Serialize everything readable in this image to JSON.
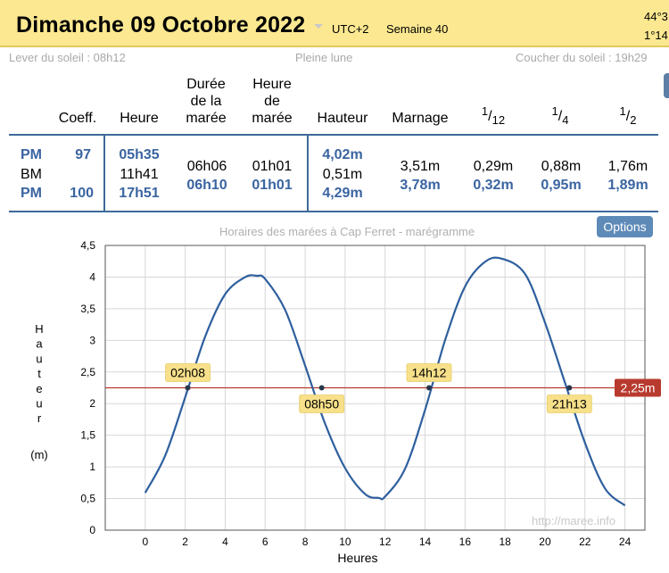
{
  "header": {
    "date": "Dimanche 09 Octobre 2022",
    "timezone": "UTC+2",
    "week": "Semaine 40",
    "coord_lat": "44°3",
    "coord_lon": "1°14"
  },
  "sun": {
    "sunrise": "Lever du soleil : 08h12",
    "moon": "Pleine lune",
    "sunset": "Coucher du soleil : 19h29"
  },
  "table": {
    "headers": {
      "coeff": "Coeff.",
      "heure": "Heure",
      "duree_l1": "Durée",
      "duree_l2": "de la",
      "duree_l3": "marée",
      "heure_maree_l1": "Heure",
      "heure_maree_l2": "de",
      "heure_maree_l3": "marée",
      "hauteur": "Hauteur",
      "marnage": "Marnage",
      "f1_num": "1",
      "f1_den": "12",
      "f2_num": "1",
      "f2_den": "4",
      "f3_num": "1",
      "f3_den": "2"
    },
    "rows": [
      {
        "type": "PM",
        "coeff": "97",
        "heure": "05h35",
        "duree": "",
        "heure_maree": "",
        "hauteur": "4,02m",
        "marnage": "",
        "t12": "",
        "t4": "",
        "t2": ""
      },
      {
        "type": "BM",
        "coeff": "",
        "heure": "11h41",
        "duree": "06h06",
        "heure_maree": "01h01",
        "hauteur": "0,51m",
        "marnage": "3,51m",
        "t12": "0,29m",
        "t4": "0,88m",
        "t2": "1,76m"
      },
      {
        "type": "PM",
        "coeff": "100",
        "heure": "17h51",
        "duree": "06h10",
        "heure_maree": "01h01",
        "hauteur": "4,29m",
        "marnage": "3,78m",
        "t12": "0,32m",
        "t4": "0,95m",
        "t2": "1,89m"
      }
    ]
  },
  "chart": {
    "title": "Horaires des marées à Cap Ferret - marégramme",
    "options_label": "Options",
    "ylabel": "Hauteur",
    "yunit": "(m)",
    "xlabel": "Heures",
    "watermark": "http://maree.info"
  },
  "chart_data": {
    "type": "line",
    "title": "Horaires des marées à Cap Ferret - marégramme",
    "xlabel": "Heures",
    "ylabel": "Hauteur (m)",
    "xlim": [
      -2,
      25
    ],
    "ylim": [
      0,
      4.5
    ],
    "xticks": [
      0,
      2,
      4,
      6,
      8,
      10,
      12,
      14,
      16,
      18,
      20,
      22,
      24
    ],
    "yticks": [
      "0",
      "0,5",
      "1",
      "1,5",
      "2",
      "2,5",
      "3",
      "3,5",
      "4",
      "4,5"
    ],
    "grid": true,
    "series": [
      {
        "color": "#2e5f9e",
        "x": [
          0,
          1,
          2,
          3,
          4,
          5,
          5.58,
          6,
          7,
          8,
          9,
          10,
          11,
          11.68,
          12,
          13,
          14,
          15,
          16,
          17,
          17.85,
          19,
          20,
          21,
          22,
          23,
          24
        ],
        "y": [
          0.59,
          1.18,
          2.1,
          3.06,
          3.73,
          4.0,
          4.02,
          3.97,
          3.48,
          2.6,
          1.68,
          0.98,
          0.57,
          0.51,
          0.53,
          0.97,
          1.9,
          3.0,
          3.85,
          4.24,
          4.29,
          4.05,
          3.28,
          2.33,
          1.38,
          0.66,
          0.39
        ]
      }
    ],
    "threshold": {
      "value": 2.25,
      "label": "2,25m",
      "color": "#b83a2e"
    },
    "annotations": [
      {
        "label": "02h08",
        "x": 2.13,
        "y": 2.25
      },
      {
        "label": "08h50",
        "x": 8.83,
        "y": 2.25
      },
      {
        "label": "14h12",
        "x": 14.2,
        "y": 2.25
      },
      {
        "label": "21h13",
        "x": 21.22,
        "y": 2.25
      }
    ]
  },
  "colors": {
    "header_bg": "#fbe891",
    "accent_blue": "#3a64a1",
    "curve": "#2e5f9e",
    "threshold": "#b83a2e",
    "label_bg": "#f7e08a"
  }
}
